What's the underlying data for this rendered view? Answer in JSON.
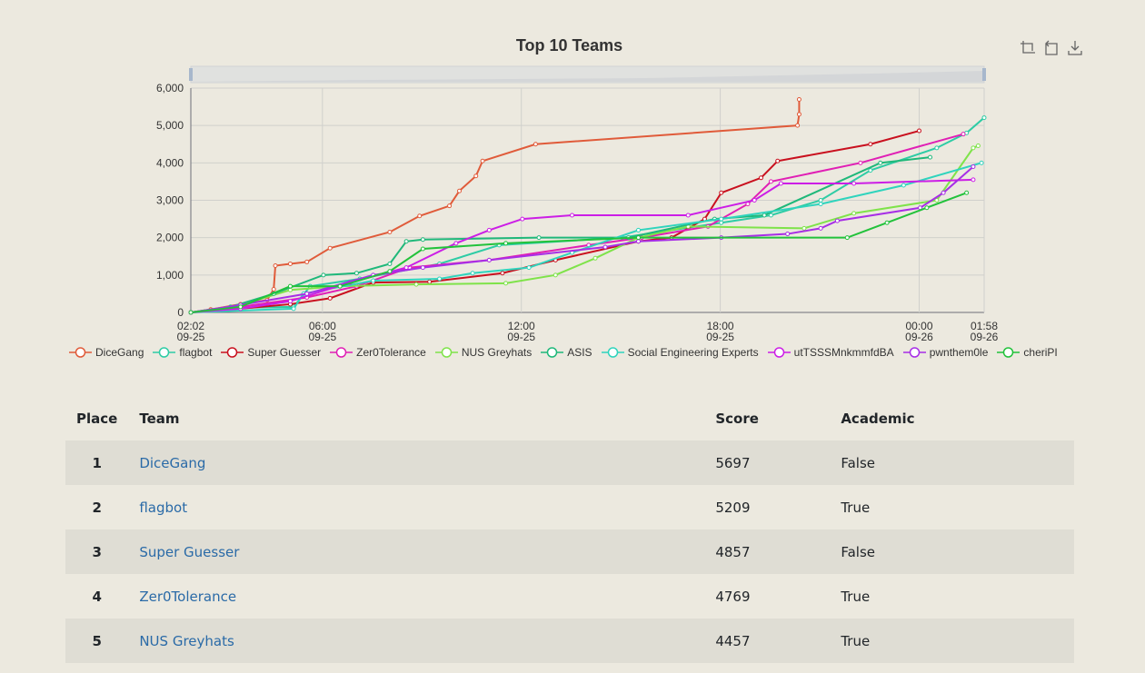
{
  "chart": {
    "title": "Top 10 Teams",
    "toolbox": [
      "zoom-icon",
      "zoom-reset-icon",
      "download-icon"
    ]
  },
  "chart_data": {
    "type": "line",
    "title": "Top 10 Teams",
    "ylim": [
      0,
      6000
    ],
    "yticks": [
      "0",
      "1,000",
      "2,000",
      "3,000",
      "4,000",
      "5,000",
      "6,000"
    ],
    "xticks": [
      {
        "time": "02:02",
        "date": "09-25",
        "h": 0
      },
      {
        "time": "06:00",
        "date": "09-25",
        "h": 3.97
      },
      {
        "time": "12:00",
        "date": "09-25",
        "h": 9.97
      },
      {
        "time": "18:00",
        "date": "09-25",
        "h": 15.97
      },
      {
        "time": "00:00",
        "date": "09-26",
        "h": 21.97
      },
      {
        "time": "01:58",
        "date": "09-26",
        "h": 23.93
      }
    ],
    "x_unit": "hours since 09-25 02:02",
    "grid": true,
    "legend_position": "bottom",
    "series": [
      {
        "name": "DiceGang",
        "color": "#e05b3a",
        "points": [
          [
            0,
            0
          ],
          [
            0.6,
            80
          ],
          [
            1.5,
            220
          ],
          [
            2.3,
            330
          ],
          [
            2.5,
            620
          ],
          [
            2.55,
            1250
          ],
          [
            3.0,
            1300
          ],
          [
            3.5,
            1350
          ],
          [
            4.2,
            1720
          ],
          [
            6.0,
            2150
          ],
          [
            6.9,
            2580
          ],
          [
            7.8,
            2850
          ],
          [
            8.1,
            3250
          ],
          [
            8.6,
            3650
          ],
          [
            8.8,
            4050
          ],
          [
            10.4,
            4500
          ],
          [
            18.3,
            5000
          ],
          [
            18.35,
            5300
          ],
          [
            18.35,
            5697
          ]
        ]
      },
      {
        "name": "flagbot",
        "color": "#2ecca5",
        "points": [
          [
            0,
            0
          ],
          [
            1.2,
            120
          ],
          [
            3.1,
            150
          ],
          [
            3.6,
            700
          ],
          [
            5.1,
            900
          ],
          [
            7.5,
            1300
          ],
          [
            9.3,
            1800
          ],
          [
            13.0,
            2000
          ],
          [
            16.0,
            2400
          ],
          [
            17.5,
            2600
          ],
          [
            19.0,
            3000
          ],
          [
            20.5,
            3800
          ],
          [
            22.5,
            4400
          ],
          [
            23.4,
            4800
          ],
          [
            23.93,
            5209
          ]
        ]
      },
      {
        "name": "Super Guesser",
        "color": "#c9101e",
        "points": [
          [
            0,
            0
          ],
          [
            1.5,
            100
          ],
          [
            3.0,
            220
          ],
          [
            4.2,
            380
          ],
          [
            5.5,
            800
          ],
          [
            7.2,
            820
          ],
          [
            9.4,
            1050
          ],
          [
            11.0,
            1400
          ],
          [
            13.5,
            1900
          ],
          [
            14.5,
            2000
          ],
          [
            15.5,
            2500
          ],
          [
            16.0,
            3200
          ],
          [
            17.2,
            3600
          ],
          [
            17.7,
            4050
          ],
          [
            20.5,
            4500
          ],
          [
            21.97,
            4857
          ]
        ]
      },
      {
        "name": "Zer0Tolerance",
        "color": "#e01fb5",
        "points": [
          [
            0,
            0
          ],
          [
            1.5,
            150
          ],
          [
            3.5,
            400
          ],
          [
            5.0,
            700
          ],
          [
            6.6,
            1200
          ],
          [
            9.0,
            1400
          ],
          [
            12.0,
            1800
          ],
          [
            13.6,
            2000
          ],
          [
            15.6,
            2300
          ],
          [
            16.8,
            2900
          ],
          [
            17.5,
            3500
          ],
          [
            20.2,
            4000
          ],
          [
            23.3,
            4769
          ]
        ]
      },
      {
        "name": "NUS Greyhats",
        "color": "#7fe34a",
        "points": [
          [
            0,
            0
          ],
          [
            1.5,
            200
          ],
          [
            3.0,
            600
          ],
          [
            4.5,
            700
          ],
          [
            6.8,
            750
          ],
          [
            9.5,
            780
          ],
          [
            11.0,
            1000
          ],
          [
            12.2,
            1450
          ],
          [
            13.5,
            2000
          ],
          [
            15.0,
            2300
          ],
          [
            18.5,
            2250
          ],
          [
            20.0,
            2650
          ],
          [
            22.5,
            3000
          ],
          [
            23.6,
            4400
          ],
          [
            23.75,
            4457
          ]
        ]
      },
      {
        "name": "ASIS",
        "color": "#1fb87a",
        "points": [
          [
            0,
            0
          ],
          [
            1.2,
            150
          ],
          [
            2.5,
            500
          ],
          [
            4.0,
            1000
          ],
          [
            5.0,
            1050
          ],
          [
            6.0,
            1300
          ],
          [
            6.5,
            1900
          ],
          [
            7.0,
            1950
          ],
          [
            10.5,
            2000
          ],
          [
            13.2,
            2000
          ],
          [
            15.8,
            2500
          ],
          [
            17.3,
            2600
          ],
          [
            20.8,
            4000
          ],
          [
            22.3,
            4150
          ]
        ]
      },
      {
        "name": "Social Engineering Experts",
        "color": "#2fd4bd",
        "points": [
          [
            0,
            0
          ],
          [
            3.1,
            100
          ],
          [
            3.4,
            500
          ],
          [
            5.5,
            850
          ],
          [
            7.5,
            900
          ],
          [
            8.5,
            1050
          ],
          [
            10.2,
            1200
          ],
          [
            11.5,
            1600
          ],
          [
            13.5,
            2200
          ],
          [
            16.0,
            2500
          ],
          [
            19.0,
            2900
          ],
          [
            21.5,
            3400
          ],
          [
            23.85,
            4000
          ]
        ]
      },
      {
        "name": "utTSSSMnkmmfdBA",
        "color": "#cc1ee6",
        "points": [
          [
            0,
            0
          ],
          [
            1.5,
            100
          ],
          [
            3.0,
            300
          ],
          [
            4.8,
            800
          ],
          [
            6.5,
            1200
          ],
          [
            8.0,
            1850
          ],
          [
            9.0,
            2200
          ],
          [
            10.0,
            2500
          ],
          [
            11.5,
            2600
          ],
          [
            15.0,
            2600
          ],
          [
            17.0,
            3000
          ],
          [
            17.8,
            3450
          ],
          [
            20.0,
            3450
          ],
          [
            23.6,
            3550
          ]
        ]
      },
      {
        "name": "pwnthem0le",
        "color": "#a72ee6",
        "points": [
          [
            0,
            0
          ],
          [
            1.5,
            200
          ],
          [
            3.5,
            500
          ],
          [
            5.5,
            1000
          ],
          [
            7.0,
            1200
          ],
          [
            9.0,
            1400
          ],
          [
            12.5,
            1750
          ],
          [
            13.5,
            1900
          ],
          [
            16.0,
            2000
          ],
          [
            18.0,
            2100
          ],
          [
            19.0,
            2250
          ],
          [
            19.5,
            2450
          ],
          [
            22.0,
            2800
          ],
          [
            22.7,
            3200
          ],
          [
            23.6,
            3900
          ]
        ]
      },
      {
        "name": "cheriPI",
        "color": "#22c23b",
        "points": [
          [
            0,
            0
          ],
          [
            1.5,
            150
          ],
          [
            3.0,
            700
          ],
          [
            4.5,
            700
          ],
          [
            6.0,
            1100
          ],
          [
            7.0,
            1700
          ],
          [
            9.5,
            1850
          ],
          [
            13.5,
            2000
          ],
          [
            19.8,
            2000
          ],
          [
            21.0,
            2400
          ],
          [
            22.2,
            2800
          ],
          [
            23.4,
            3200
          ]
        ]
      }
    ]
  },
  "table": {
    "headers": {
      "place": "Place",
      "team": "Team",
      "score": "Score",
      "academic": "Academic"
    },
    "rows": [
      {
        "place": "1",
        "team": "DiceGang",
        "score": "5697",
        "academic": "False"
      },
      {
        "place": "2",
        "team": "flagbot",
        "score": "5209",
        "academic": "True"
      },
      {
        "place": "3",
        "team": "Super Guesser",
        "score": "4857",
        "academic": "False"
      },
      {
        "place": "4",
        "team": "Zer0Tolerance",
        "score": "4769",
        "academic": "True"
      },
      {
        "place": "5",
        "team": "NUS Greyhats",
        "score": "4457",
        "academic": "True"
      }
    ]
  }
}
